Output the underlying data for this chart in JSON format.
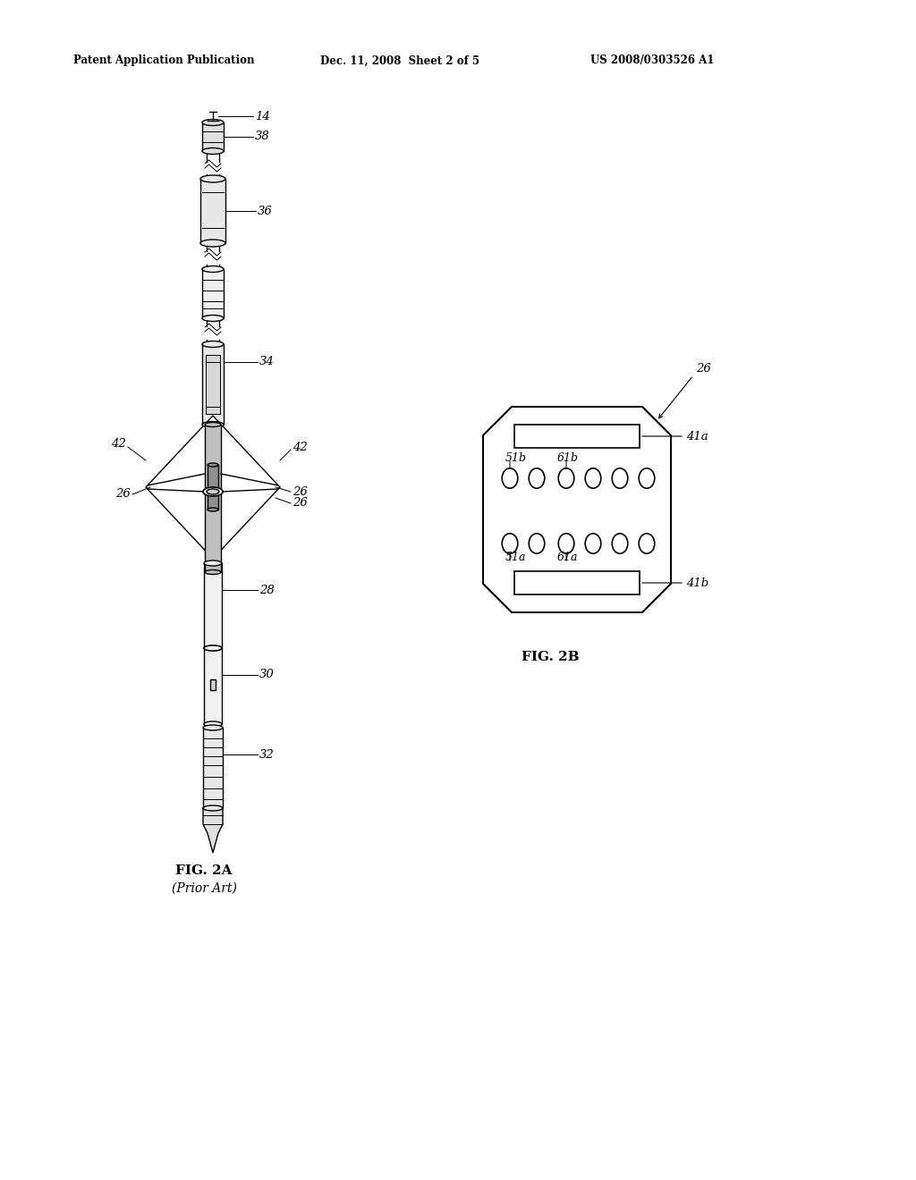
{
  "bg_color": "#ffffff",
  "header_left": "Patent Application Publication",
  "header_mid": "Dec. 11, 2008  Sheet 2 of 5",
  "header_right": "US 2008/0303526 A1",
  "fig2a_label": "FIG. 2A",
  "fig2a_sub": "(Prior Art)",
  "fig2b_label": "FIG. 2B"
}
